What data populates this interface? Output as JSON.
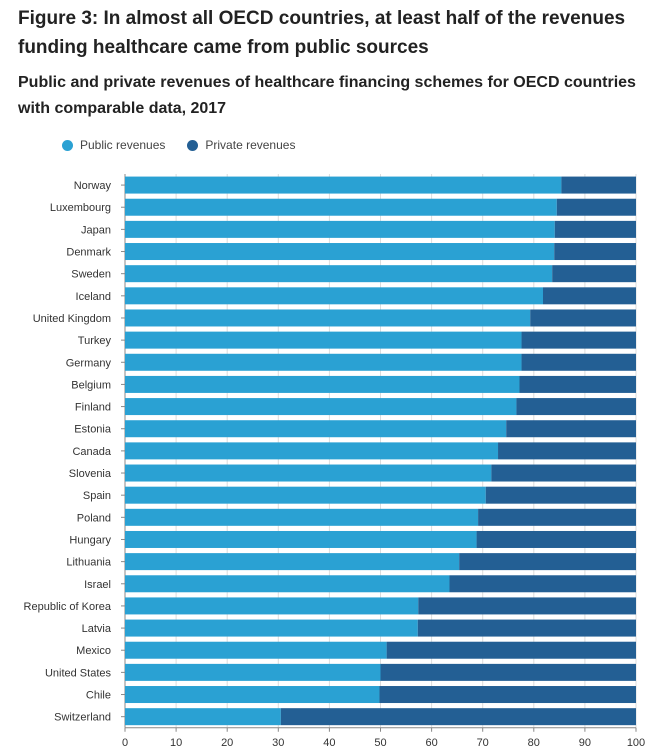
{
  "title": "Figure 3: In almost all OECD countries, at least half of the revenues funding healthcare came from public sources",
  "subtitle": "Public and private revenues of healthcare financing schemes for OECD countries with comparable data, 2017",
  "colors": {
    "public": "#2aa1d3",
    "private": "#235f94",
    "grid": "#dcdcdc",
    "axis": "#888888"
  },
  "chart_data": {
    "type": "bar",
    "orientation": "horizontal",
    "stacked": true,
    "title": "Figure 3: In almost all OECD countries, at least half of the revenues funding healthcare came from public sources",
    "subtitle": "Public and private revenues of healthcare financing schemes for OECD countries with comparable data, 2017",
    "xlabel": "",
    "ylabel": "",
    "xlim": [
      0,
      100
    ],
    "xticks": [
      0,
      10,
      20,
      30,
      40,
      50,
      60,
      70,
      80,
      90,
      100
    ],
    "grid": true,
    "legend_position": "top-left",
    "categories": [
      "Norway",
      "Luxembourg",
      "Japan",
      "Denmark",
      "Sweden",
      "Iceland",
      "United Kingdom",
      "Turkey",
      "Germany",
      "Belgium",
      "Finland",
      "Estonia",
      "Canada",
      "Slovenia",
      "Spain",
      "Poland",
      "Hungary",
      "Lithuania",
      "Israel",
      "Republic of Korea",
      "Latvia",
      "Mexico",
      "United States",
      "Chile",
      "Switzerland"
    ],
    "series": [
      {
        "name": "Public revenues",
        "values": [
          85.4,
          84.5,
          84.1,
          84.0,
          83.6,
          81.8,
          79.3,
          77.6,
          77.6,
          77.2,
          76.6,
          74.6,
          73.0,
          71.7,
          70.6,
          69.1,
          68.8,
          65.4,
          63.5,
          57.4,
          57.3,
          51.2,
          50.0,
          49.8,
          30.5
        ]
      },
      {
        "name": "Private revenues",
        "values": [
          14.6,
          15.5,
          15.9,
          16.0,
          16.4,
          18.2,
          20.7,
          22.4,
          22.4,
          22.8,
          23.4,
          25.4,
          27.0,
          28.3,
          29.4,
          30.9,
          31.2,
          34.6,
          36.5,
          42.6,
          42.7,
          48.8,
          50.0,
          50.2,
          69.5
        ]
      }
    ]
  }
}
